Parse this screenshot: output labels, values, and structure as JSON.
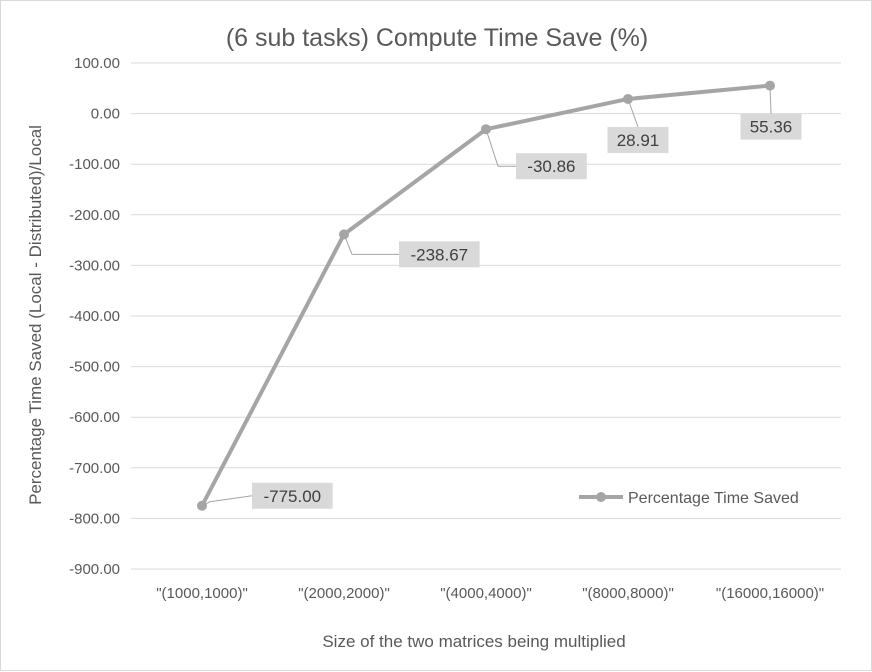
{
  "chart_data": {
    "type": "line",
    "title": "(6 sub tasks) Compute Time Save (%)",
    "xlabel": "Size of the two matrices being multiplied",
    "ylabel": "Percentage Time Saved (Local - Distributed)/Local",
    "categories": [
      "\"(1000,1000)\"",
      "\"(2000,2000)\"",
      "\"(4000,4000)\"",
      "\"(8000,8000)\"",
      "\"(16000,16000)\""
    ],
    "series": [
      {
        "name": "Percentage Time Saved",
        "values": [
          -775.0,
          -238.67,
          -30.86,
          28.91,
          55.36
        ],
        "data_labels": [
          "-775.00",
          "-238.67",
          "-30.86",
          "28.91",
          "55.36"
        ],
        "color": "#a5a5a5"
      }
    ],
    "ylim": [
      -900,
      100
    ],
    "yticks": [
      "100.00",
      "0.00",
      "-100.00",
      "-200.00",
      "-300.00",
      "-400.00",
      "-500.00",
      "-600.00",
      "-700.00",
      "-800.00",
      "-900.00"
    ],
    "ytick_values": [
      100,
      0,
      -100,
      -200,
      -300,
      -400,
      -500,
      -600,
      -700,
      -800,
      -900
    ],
    "grid": true,
    "legend": "bottom-right"
  }
}
